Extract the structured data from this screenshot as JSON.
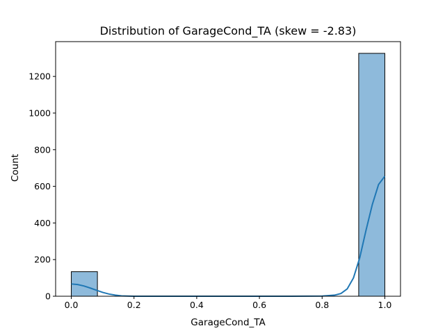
{
  "chart_data": {
    "type": "bar",
    "title": "Distribution of GarageCond_TA (skew = -2.83)",
    "xlabel": "GarageCond_TA",
    "ylabel": "Count",
    "xlim": [
      -0.05,
      1.05
    ],
    "ylim": [
      0,
      1390
    ],
    "x_ticks": [
      {
        "value": 0.0,
        "label": "0.0"
      },
      {
        "value": 0.2,
        "label": "0.2"
      },
      {
        "value": 0.4,
        "label": "0.4"
      },
      {
        "value": 0.6,
        "label": "0.6"
      },
      {
        "value": 0.8,
        "label": "0.8"
      },
      {
        "value": 1.0,
        "label": "1.0"
      }
    ],
    "y_ticks": [
      {
        "value": 0,
        "label": "0"
      },
      {
        "value": 200,
        "label": "200"
      },
      {
        "value": 400,
        "label": "400"
      },
      {
        "value": 600,
        "label": "600"
      },
      {
        "value": 800,
        "label": "800"
      },
      {
        "value": 1000,
        "label": "1000"
      },
      {
        "value": 1200,
        "label": "1200"
      }
    ],
    "bins": [
      {
        "start": 0.0,
        "end": 0.0833,
        "count": 134
      },
      {
        "start": 0.9167,
        "end": 1.0,
        "count": 1326
      }
    ],
    "kde": {
      "x": [
        0.0,
        0.02,
        0.04,
        0.06,
        0.08,
        0.1,
        0.12,
        0.14,
        0.16,
        0.18,
        0.2,
        0.3,
        0.5,
        0.7,
        0.8,
        0.84,
        0.86,
        0.88,
        0.9,
        0.92,
        0.94,
        0.96,
        0.98,
        1.0
      ],
      "y": [
        67,
        64,
        56,
        45,
        33,
        21,
        12,
        6,
        2,
        1,
        0,
        0,
        0,
        0,
        1,
        6,
        15,
        40,
        100,
        210,
        360,
        500,
        610,
        655
      ]
    },
    "grid": false,
    "colors": {
      "bar_fill": "#8ebadb",
      "bar_edge": "#000000",
      "kde_line": "#1f77b4"
    }
  }
}
